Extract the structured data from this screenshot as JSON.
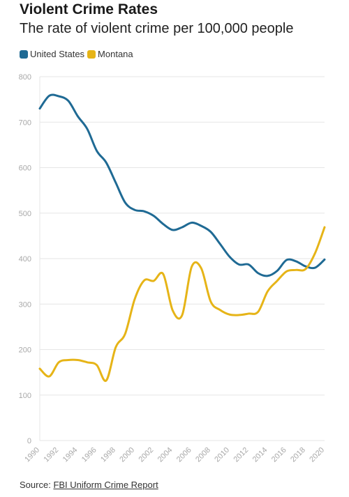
{
  "header": {
    "title": "Violent Crime Rates",
    "subtitle": "The rate of violent crime per 100,000 people"
  },
  "footer": {
    "source_label": "Source:",
    "source_link": "FBI Uniform Crime Report"
  },
  "colors": {
    "united_states": "#1f6a94",
    "montana": "#e6b417",
    "grid": "#e6e6e6",
    "tick_text": "#a8a8a8"
  },
  "chart_data": {
    "type": "line",
    "title": "Violent Crime Rates",
    "subtitle": "The rate of violent crime per 100,000 people",
    "xlabel": "",
    "ylabel": "",
    "ylim": [
      0,
      800
    ],
    "xlim": [
      1990,
      2020
    ],
    "grid": true,
    "legend_position": "top-left",
    "y_ticks": [
      "0",
      "100",
      "200",
      "300",
      "400",
      "500",
      "600",
      "700",
      "800"
    ],
    "x_ticks": [
      "1990",
      "1992",
      "1994",
      "1996",
      "1998",
      "2000",
      "2002",
      "2004",
      "2006",
      "2008",
      "2010",
      "2012",
      "2014",
      "2016",
      "2018",
      "2020"
    ],
    "x": [
      1990,
      1991,
      1992,
      1993,
      1994,
      1995,
      1996,
      1997,
      1998,
      1999,
      2000,
      2001,
      2002,
      2003,
      2004,
      2005,
      2006,
      2007,
      2008,
      2009,
      2010,
      2011,
      2012,
      2013,
      2014,
      2015,
      2016,
      2017,
      2018,
      2019,
      2020
    ],
    "series": [
      {
        "name": "United States",
        "color": "#1f6a94",
        "values": [
          730,
          758,
          757,
          747,
          713,
          685,
          637,
          611,
          567,
          523,
          507,
          504,
          494,
          476,
          463,
          469,
          479,
          472,
          459,
          432,
          404,
          387,
          387,
          368,
          362,
          373,
          397,
          394,
          383,
          380,
          398
        ]
      },
      {
        "name": "Montana",
        "color": "#e6b417",
        "values": [
          158,
          141,
          172,
          177,
          177,
          172,
          166,
          132,
          205,
          235,
          311,
          352,
          351,
          366,
          286,
          276,
          382,
          379,
          306,
          287,
          277,
          276,
          279,
          283,
          328,
          351,
          372,
          375,
          377,
          412,
          469
        ]
      }
    ]
  }
}
